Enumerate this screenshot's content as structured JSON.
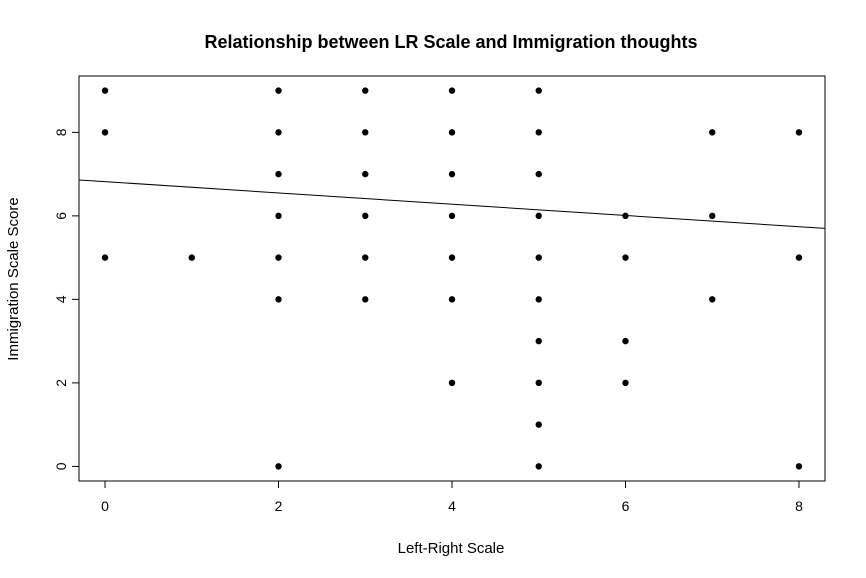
{
  "chart_data": {
    "type": "scatter",
    "title": "Relationship between LR Scale and Immigration thoughts",
    "xlabel": "Left-Right Scale",
    "ylabel": "Immigration Scale Score",
    "xlim": [
      -0.3,
      8.3
    ],
    "ylim": [
      -0.35,
      9.35
    ],
    "xticks": [
      "0",
      "2",
      "4",
      "6",
      "8"
    ],
    "yticks": [
      "0",
      "2",
      "4",
      "6",
      "8"
    ],
    "grid": false,
    "legend": "none",
    "point_color": "#000000",
    "points": [
      {
        "x": 0,
        "y": 9
      },
      {
        "x": 0,
        "y": 8
      },
      {
        "x": 0,
        "y": 5
      },
      {
        "x": 1,
        "y": 5
      },
      {
        "x": 2,
        "y": 9
      },
      {
        "x": 2,
        "y": 8
      },
      {
        "x": 2,
        "y": 7
      },
      {
        "x": 2,
        "y": 6
      },
      {
        "x": 2,
        "y": 5
      },
      {
        "x": 2,
        "y": 4
      },
      {
        "x": 2,
        "y": 0
      },
      {
        "x": 3,
        "y": 9
      },
      {
        "x": 3,
        "y": 8
      },
      {
        "x": 3,
        "y": 7
      },
      {
        "x": 3,
        "y": 6
      },
      {
        "x": 3,
        "y": 5
      },
      {
        "x": 3,
        "y": 4
      },
      {
        "x": 4,
        "y": 9
      },
      {
        "x": 4,
        "y": 8
      },
      {
        "x": 4,
        "y": 7
      },
      {
        "x": 4,
        "y": 6
      },
      {
        "x": 4,
        "y": 5
      },
      {
        "x": 4,
        "y": 4
      },
      {
        "x": 4,
        "y": 2
      },
      {
        "x": 5,
        "y": 9
      },
      {
        "x": 5,
        "y": 8
      },
      {
        "x": 5,
        "y": 7
      },
      {
        "x": 5,
        "y": 6
      },
      {
        "x": 5,
        "y": 5
      },
      {
        "x": 5,
        "y": 4
      },
      {
        "x": 5,
        "y": 3
      },
      {
        "x": 5,
        "y": 2
      },
      {
        "x": 5,
        "y": 1
      },
      {
        "x": 5,
        "y": 0
      },
      {
        "x": 6,
        "y": 6
      },
      {
        "x": 6,
        "y": 5
      },
      {
        "x": 6,
        "y": 3
      },
      {
        "x": 6,
        "y": 2
      },
      {
        "x": 7,
        "y": 8
      },
      {
        "x": 7,
        "y": 6
      },
      {
        "x": 7,
        "y": 4
      },
      {
        "x": 8,
        "y": 8
      },
      {
        "x": 8,
        "y": 5
      },
      {
        "x": 8,
        "y": 0
      }
    ],
    "regression_line": {
      "intercept": 6.82,
      "slope": -0.135
    }
  }
}
